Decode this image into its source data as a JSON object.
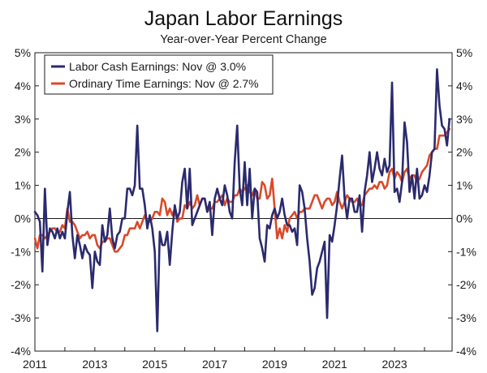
{
  "chart_data": {
    "type": "line",
    "title": "Japan Labor Earnings",
    "subtitle": "Year-over-Year Percent Change",
    "xlabel": "",
    "ylabel": "",
    "xlim": [
      2011.0,
      2024.92
    ],
    "ylim": [
      -4,
      5
    ],
    "x_start": "2011-01",
    "x_step": "1 month",
    "x_ticks": [
      "2011",
      "2013",
      "2015",
      "2017",
      "2019",
      "2021",
      "2023"
    ],
    "x_tick_values": [
      2011,
      2013,
      2015,
      2017,
      2019,
      2021,
      2023
    ],
    "y_ticks_left": [
      "5%",
      "4%",
      "3%",
      "2%",
      "1%",
      "0%",
      "-1%",
      "-2%",
      "-3%",
      "-4%"
    ],
    "y_ticks_right": [
      "5%",
      "4%",
      "3%",
      "2%",
      "1%",
      "0%",
      "-1%",
      "-2%",
      "-3%",
      "-4%"
    ],
    "y_tick_values": [
      5,
      4,
      3,
      2,
      1,
      0,
      -1,
      -2,
      -3,
      -4
    ],
    "grid": false,
    "zero_line": true,
    "legend_position": "top-left",
    "series": [
      {
        "name": "Labor Cash Earnings: Nov @ 3.0%",
        "color": "#2b2a6e",
        "values": [
          0.2,
          0.1,
          -0.1,
          -1.6,
          0.9,
          -0.8,
          -0.3,
          -0.4,
          -0.6,
          -0.3,
          -0.6,
          -0.4,
          -0.6,
          0.2,
          0.8,
          -0.5,
          -1.2,
          -0.5,
          -0.8,
          -1.2,
          -0.8,
          -1.0,
          -1.1,
          -2.1,
          -1.0,
          -1.3,
          -1.4,
          -0.2,
          -0.7,
          -0.5,
          0.3,
          -0.6,
          -0.9,
          -0.5,
          -0.4,
          0.0,
          0.0,
          0.9,
          0.9,
          0.7,
          1.0,
          2.8,
          0.9,
          0.9,
          0.4,
          -0.3,
          0.1,
          -0.3,
          -1.0,
          -3.4,
          -0.4,
          -0.8,
          -0.8,
          -0.4,
          -1.4,
          -0.4,
          0.4,
          0.0,
          0.2,
          1.1,
          1.5,
          0.3,
          1.5,
          -0.2,
          0.0,
          0.2,
          0.4,
          0.6,
          0.6,
          0.2,
          0.5,
          -0.5,
          0.6,
          0.9,
          0.6,
          0.4,
          1.0,
          0.7,
          0.2,
          0.0,
          1.7,
          2.8,
          0.9,
          0.4,
          1.7,
          0.4,
          1.5,
          0.0,
          0.9,
          0.8,
          -0.6,
          -0.9,
          -1.3,
          -0.2,
          -0.3,
          0.1,
          0.3,
          0.0,
          0.2,
          0.6,
          0.1,
          -0.2,
          -0.2,
          -0.4,
          -0.3,
          -0.8,
          1.0,
          0.8,
          0.3,
          -0.6,
          -1.3,
          -2.3,
          -2.1,
          -1.5,
          -1.3,
          -1.0,
          -0.7,
          -3.0,
          -0.5,
          -0.7,
          -0.2,
          0.4,
          1.2,
          1.9,
          0.6,
          0.0,
          0.6,
          0.6,
          0.2,
          0.2,
          0.7,
          -0.4,
          0.8,
          1.3,
          2.0,
          1.1,
          1.5,
          2.0,
          1.5,
          1.3,
          1.8,
          1.4,
          1.6,
          4.1,
          0.8,
          0.9,
          0.5,
          1.1,
          2.9,
          2.3,
          0.8,
          1.3,
          0.6,
          1.5,
          0.6,
          0.7,
          1.0,
          0.8,
          1.3,
          2.0,
          2.1,
          4.5,
          3.4,
          2.8,
          2.7,
          2.2,
          3.0
        ],
        "last_label": "Nov @ 3.0%"
      },
      {
        "name": "Ordinary Time Earnings: Nov @ 2.7%",
        "color": "#d94a2a",
        "values": [
          -0.6,
          -0.9,
          -0.5,
          -0.5,
          -0.6,
          -0.5,
          -0.4,
          -0.3,
          -0.3,
          -0.4,
          -0.4,
          -0.2,
          -0.3,
          0.3,
          -0.1,
          -0.1,
          -0.2,
          -0.4,
          -0.6,
          -0.5,
          -0.5,
          -0.4,
          -0.6,
          -0.5,
          -0.5,
          -0.8,
          -0.9,
          -0.7,
          -0.7,
          -0.6,
          -0.6,
          -0.8,
          -1.0,
          -1.0,
          -0.9,
          -0.8,
          -0.5,
          -0.5,
          -0.3,
          -0.3,
          -0.3,
          -0.1,
          -0.3,
          -0.1,
          0.1,
          -0.1,
          -0.1,
          0.0,
          0.2,
          0.2,
          0.1,
          0.6,
          0.5,
          0.1,
          0.3,
          0.1,
          0.3,
          -0.1,
          0.0,
          0.0,
          0.4,
          0.3,
          0.5,
          0.3,
          0.4,
          0.7,
          0.4,
          0.6,
          0.6,
          0.2,
          0.3,
          0.3,
          0.5,
          0.5,
          0.6,
          0.7,
          0.4,
          0.6,
          0.5,
          0.5,
          0.7,
          0.7,
          0.9,
          0.8,
          0.9,
          1.0,
          0.8,
          0.7,
          0.9,
          0.6,
          0.6,
          1.1,
          1.0,
          0.6,
          0.7,
          1.2,
          0.3,
          -0.6,
          -0.3,
          -0.6,
          -0.2,
          -0.4,
          0.0,
          0.1,
          0.2,
          0.0,
          0.2,
          0.2,
          0.3,
          0.3,
          0.3,
          0.5,
          0.7,
          0.7,
          0.5,
          0.3,
          0.5,
          0.6,
          0.6,
          0.4,
          0.5,
          0.8,
          0.5,
          0.3,
          0.5,
          0.7,
          0.6,
          0.5,
          0.5,
          0.6,
          0.4,
          0.4,
          0.7,
          0.8,
          0.9,
          0.9,
          1.0,
          0.9,
          1.1,
          1.1,
          0.9,
          1.0,
          1.4,
          1.5,
          1.2,
          1.4,
          1.3,
          1.1,
          1.4,
          1.5,
          1.2,
          1.3,
          1.3,
          1.1,
          1.2,
          1.4,
          1.5,
          1.6,
          1.9,
          2.0,
          2.1,
          2.1,
          2.5,
          2.5,
          2.5,
          2.6,
          2.7
        ],
        "last_label": "Nov @ 2.7%"
      }
    ]
  }
}
